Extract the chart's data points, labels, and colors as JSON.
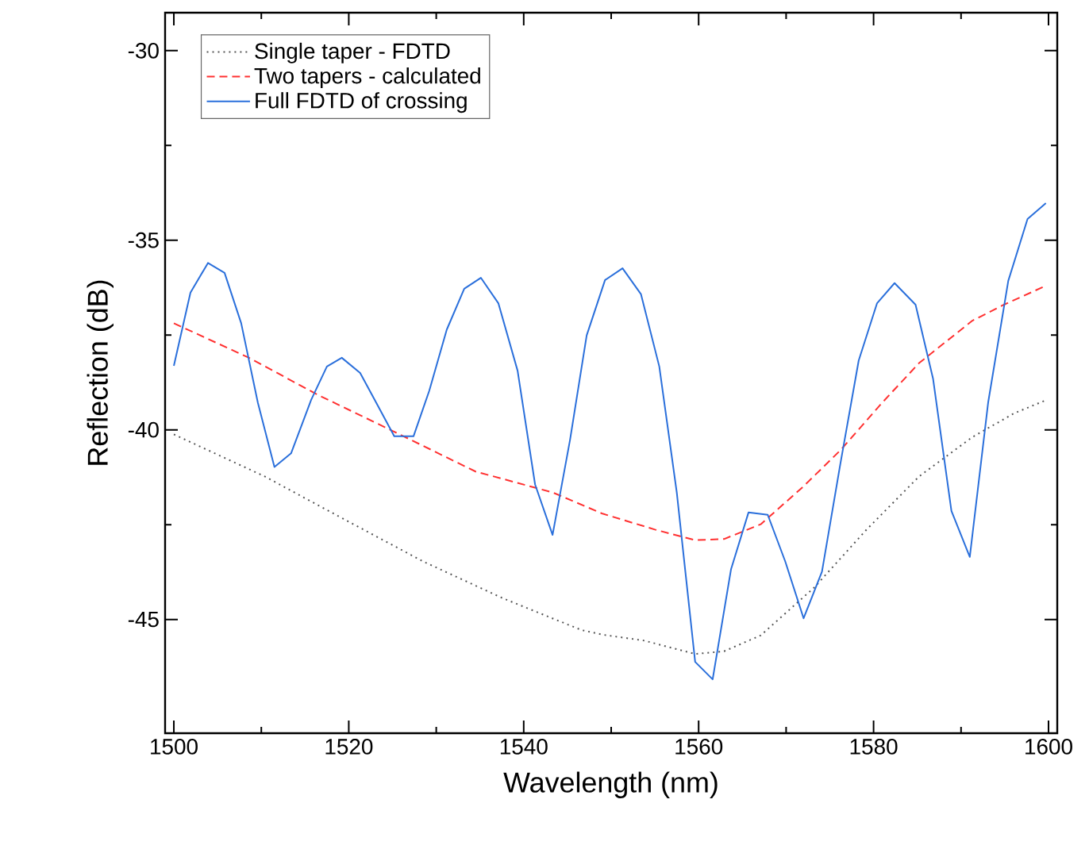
{
  "chart_data": {
    "type": "line",
    "xlabel": "Wavelength (nm)",
    "ylabel": "Reflection (dB)",
    "xlim": [
      1499,
      1601
    ],
    "ylim": [
      -48,
      -29
    ],
    "xticks": [
      1500,
      1520,
      1540,
      1560,
      1580,
      1600
    ],
    "yticks": [
      -45,
      -40,
      -35,
      -30
    ],
    "grid": false,
    "legend": "top left",
    "series": [
      {
        "name": "Single taper - FDTD",
        "color": "#555555",
        "line_style": "dotted",
        "x": [
          1500,
          1510.4,
          1519.4,
          1528.5,
          1537.6,
          1546.6,
          1549.0,
          1553.8,
          1559.6,
          1562.9,
          1567.1,
          1573.2,
          1579.2,
          1585.2,
          1591.3,
          1596.1,
          1599.8
        ],
        "values": [
          -40.12,
          -41.23,
          -42.35,
          -43.47,
          -44.44,
          -45.28,
          -45.4,
          -45.56,
          -45.91,
          -45.84,
          -45.42,
          -44.16,
          -42.63,
          -41.23,
          -40.19,
          -39.56,
          -39.21
        ]
      },
      {
        "name": "Two tapers - calculated",
        "color": "#ff3030",
        "line_style": "dashed",
        "x": [
          1500,
          1508.6,
          1516.4,
          1525.2,
          1534.5,
          1543.3,
          1549.0,
          1555.0,
          1559.6,
          1562.9,
          1567.1,
          1571.9,
          1576.2,
          1581.0,
          1585.2,
          1591.3,
          1594.9,
          1599.8
        ],
        "values": [
          -37.19,
          -38.1,
          -39.07,
          -40.05,
          -41.1,
          -41.65,
          -42.21,
          -42.63,
          -42.91,
          -42.88,
          -42.49,
          -41.51,
          -40.54,
          -39.28,
          -38.24,
          -37.12,
          -36.7,
          -36.19
        ]
      },
      {
        "name": "Full FDTD of crossing",
        "color": "#2a6fdb",
        "line_style": "solid",
        "x": [
          1500,
          1501.9,
          1503.9,
          1505.8,
          1507.7,
          1509.6,
          1511.5,
          1513.4,
          1515.7,
          1517.5,
          1519.2,
          1521.3,
          1523.2,
          1525.2,
          1527.4,
          1529.2,
          1531.2,
          1533.2,
          1535.1,
          1537.1,
          1539.3,
          1541.3,
          1543.3,
          1545.3,
          1547.2,
          1549.3,
          1551.3,
          1553.4,
          1555.5,
          1557.5,
          1559.6,
          1561.6,
          1563.7,
          1565.7,
          1567.9,
          1569.9,
          1572.0,
          1574.1,
          1576.2,
          1578.3,
          1580.4,
          1582.4,
          1584.8,
          1586.8,
          1588.9,
          1591.0,
          1593.1,
          1595.4,
          1597.6,
          1599.7
        ],
        "values": [
          -38.31,
          -36.38,
          -35.6,
          -35.86,
          -37.19,
          -39.28,
          -40.98,
          -40.62,
          -39.21,
          -38.33,
          -38.1,
          -38.5,
          -39.31,
          -40.17,
          -40.17,
          -38.97,
          -37.36,
          -36.28,
          -35.99,
          -36.66,
          -38.44,
          -41.44,
          -42.77,
          -40.26,
          -37.51,
          -36.05,
          -35.74,
          -36.42,
          -38.33,
          -41.65,
          -46.12,
          -46.58,
          -43.68,
          -42.18,
          -42.24,
          -43.47,
          -44.97,
          -43.74,
          -40.9,
          -38.17,
          -36.66,
          -36.13,
          -36.7,
          -38.65,
          -42.14,
          -43.35,
          -39.28,
          -36.07,
          -34.44,
          -34.02
        ]
      }
    ]
  }
}
